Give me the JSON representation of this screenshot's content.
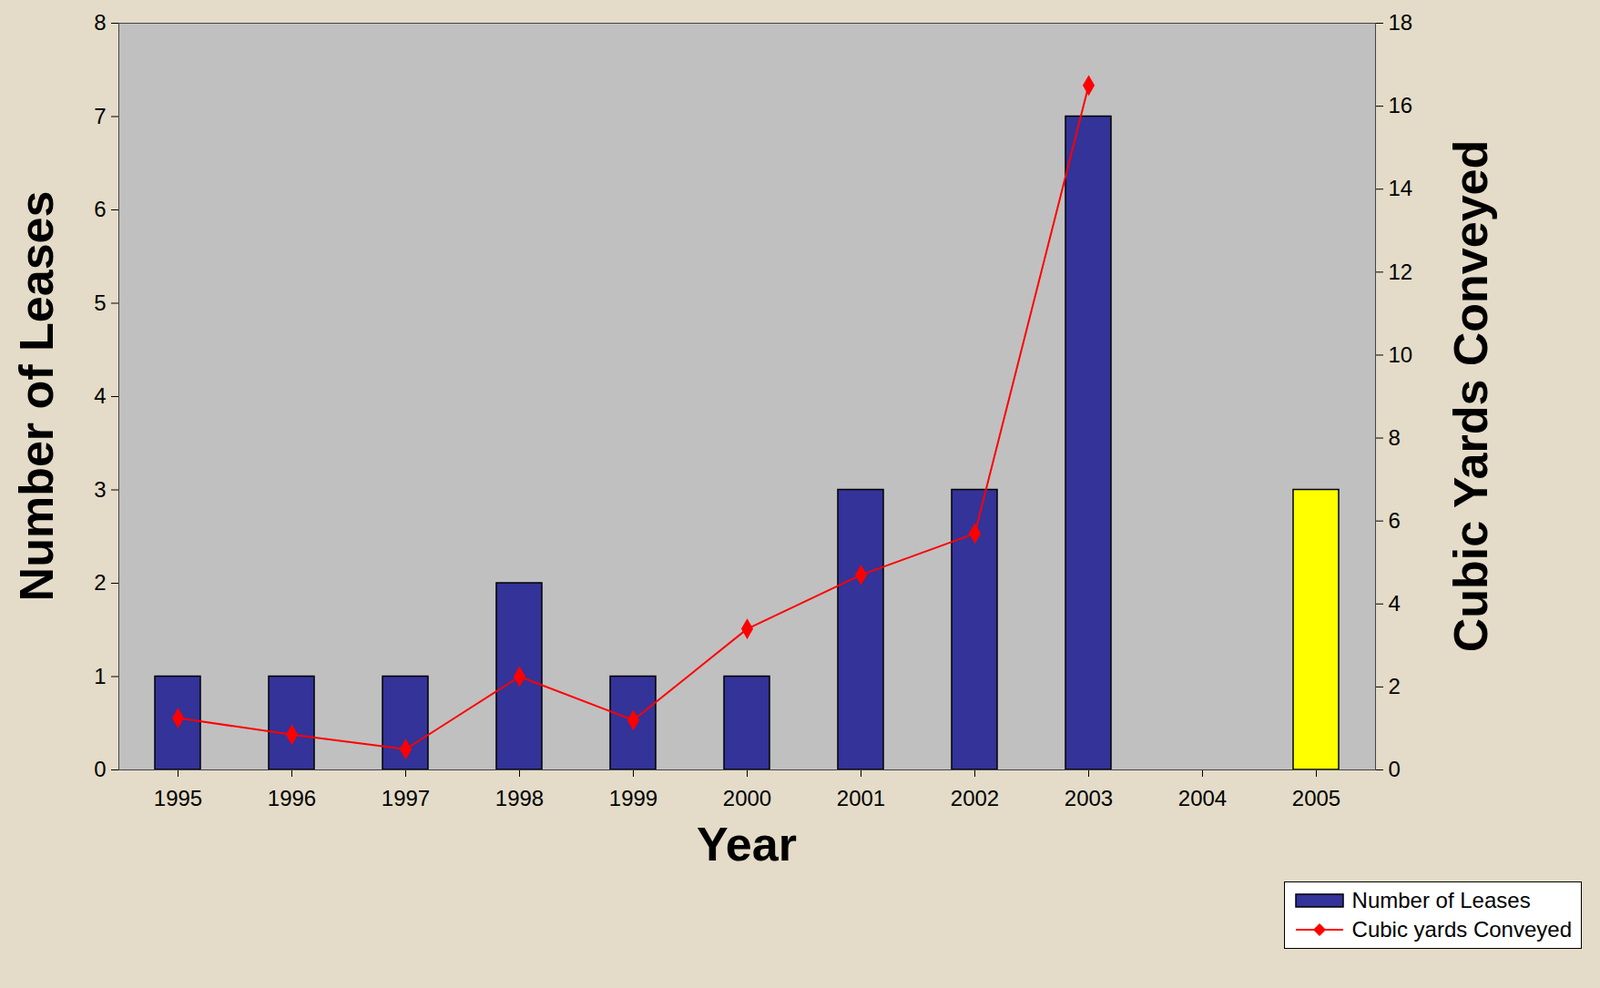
{
  "chart_data": {
    "type": "bar",
    "x_label": "Year",
    "y_label": "Number of Leases",
    "y2_label": "Cubic Yards Conveyed",
    "categories": [
      "1995",
      "1996",
      "1997",
      "1998",
      "1999",
      "2000",
      "2001",
      "2002",
      "2003",
      "2004",
      "2005"
    ],
    "series": [
      {
        "name": "Number of Leases",
        "type": "bar",
        "color": "#333399",
        "colors": [
          "#333399",
          "#333399",
          "#333399",
          "#333399",
          "#333399",
          "#333399",
          "#333399",
          "#333399",
          "#333399",
          "#333399",
          "#ffff00"
        ],
        "values": [
          1,
          1,
          1,
          2,
          1,
          1,
          3,
          3,
          7,
          null,
          3
        ]
      },
      {
        "name": "Cubic yards Conveyed",
        "type": "line",
        "axis": "y2",
        "color": "#ff0000",
        "marker": "diamond",
        "values": [
          1.25,
          0.85,
          0.5,
          2.25,
          1.2,
          3.4,
          4.7,
          5.7,
          16.5,
          null,
          null
        ]
      }
    ],
    "ylim": [
      0,
      8
    ],
    "yticks": [
      0,
      1,
      2,
      3,
      4,
      5,
      6,
      7,
      8
    ],
    "y2lim": [
      0,
      18
    ],
    "y2ticks": [
      0,
      2,
      4,
      6,
      8,
      10,
      12,
      14,
      16,
      18
    ],
    "legend": "bottom-right"
  }
}
